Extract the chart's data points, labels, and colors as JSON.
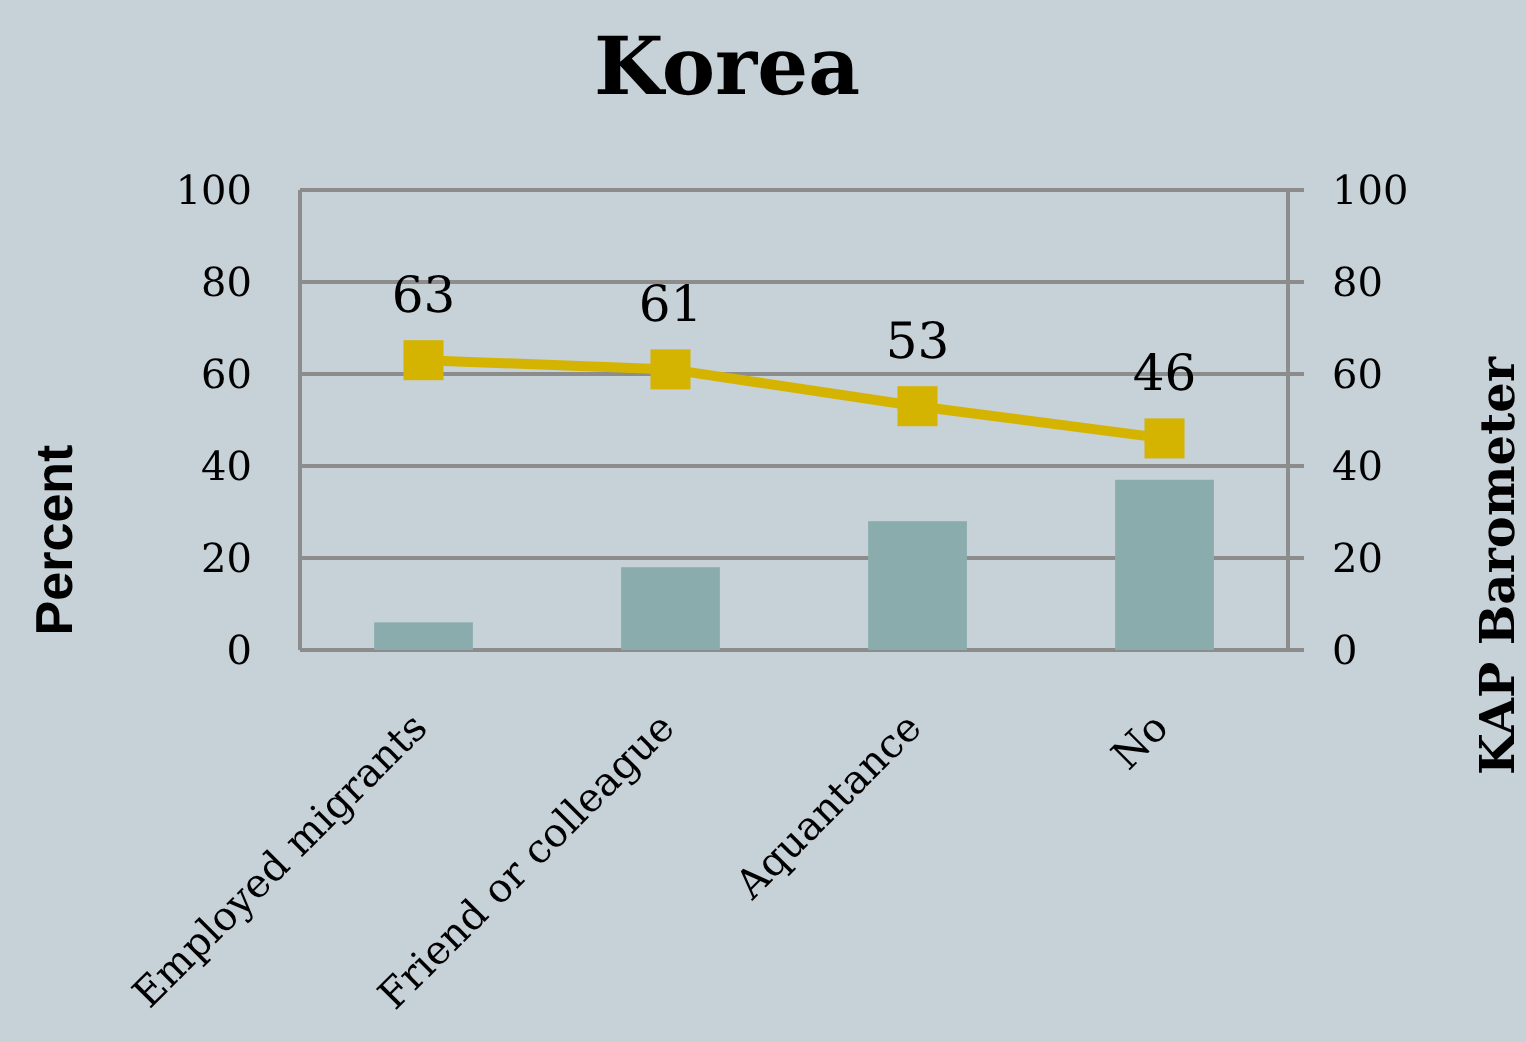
{
  "chart_data": {
    "type": "bar",
    "title": "Korea",
    "ylabel": "Percent",
    "y2label": "KAP Barometer",
    "categories": [
      "Employed migrants",
      "Friend or colleague",
      "Aquantance",
      "No"
    ],
    "series": [
      {
        "color": "#8aacad",
        "values": [
          6,
          18,
          28,
          37
        ]
      },
      {
        "type": "line",
        "axis": "y2",
        "color": "#d4b400",
        "marker": "square",
        "values": [
          63,
          61,
          53,
          46
        ],
        "value_labels": [
          "63",
          "61",
          "53",
          "46"
        ]
      }
    ],
    "ylim": [
      0,
      100
    ],
    "yticks": [
      0,
      20,
      40,
      60,
      80,
      100
    ],
    "y2lim": [
      0,
      100
    ],
    "y2ticks": [
      0,
      20,
      40,
      60,
      80,
      100
    ],
    "grid": "y"
  }
}
